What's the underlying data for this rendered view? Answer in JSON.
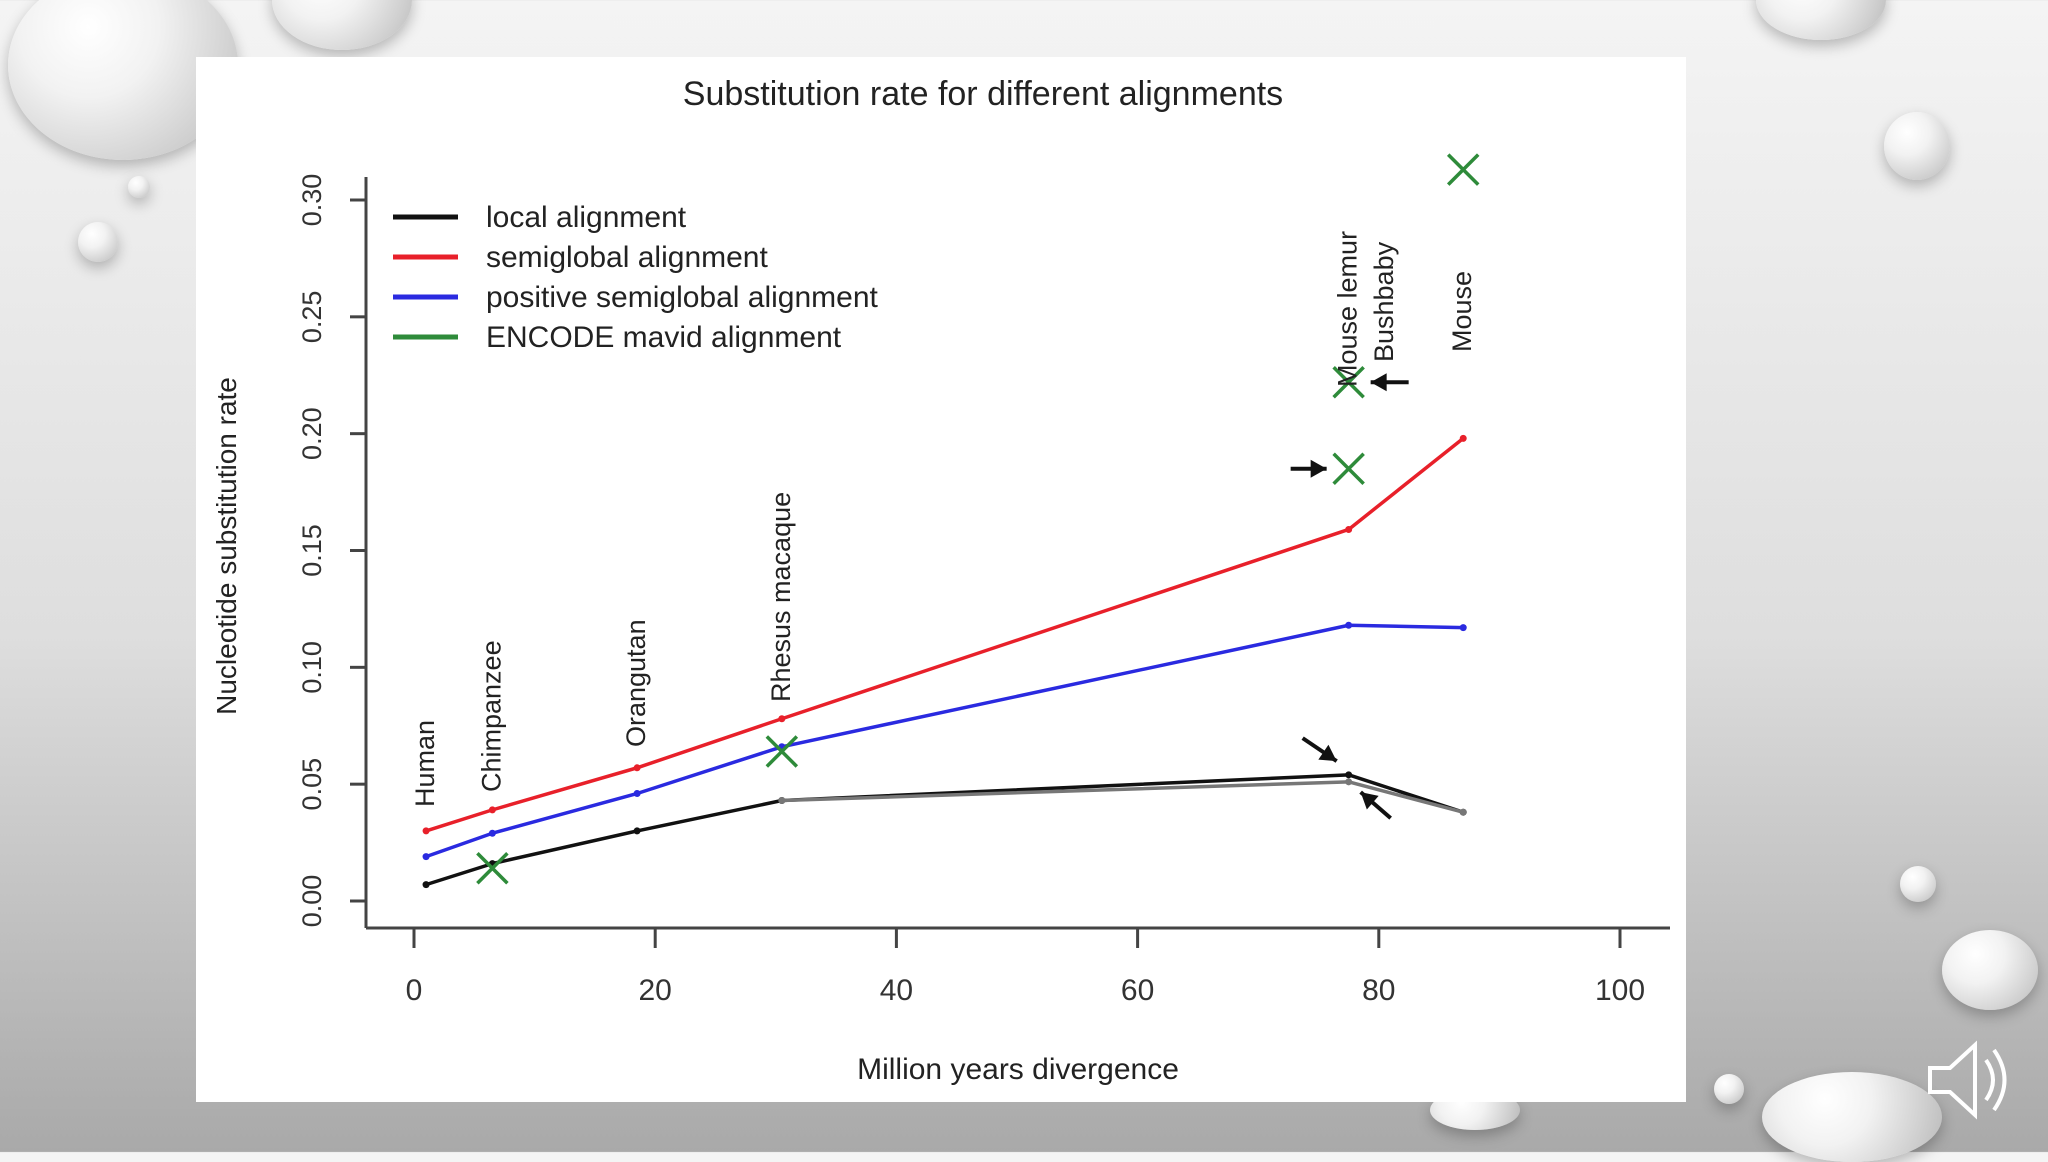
{
  "chart_data": {
    "type": "line",
    "title": "Substitution rate for different alignments",
    "xlabel": "Million years divergence",
    "ylabel": "Nucleotide substitution rate",
    "xlim": [
      0,
      100
    ],
    "ylim": [
      0,
      0.3
    ],
    "xticks": [
      "0",
      "20",
      "40",
      "60",
      "80",
      "100"
    ],
    "yticks": [
      "0.00",
      "0.05",
      "0.10",
      "0.15",
      "0.20",
      "0.25",
      "0.30"
    ],
    "grid": false,
    "legend_position": "top-left",
    "species": [
      {
        "label": "Human",
        "x": 1
      },
      {
        "label": "Chimpanzee",
        "x": 6.5
      },
      {
        "label": "Orangutan",
        "x": 18.5
      },
      {
        "label": "Rhesus macaque",
        "x": 30.5
      },
      {
        "label": "Mouse lemur",
        "x": 77.5
      },
      {
        "label": "Bushbaby",
        "x": 80.5
      },
      {
        "label": "Mouse",
        "x": 87
      }
    ],
    "series": [
      {
        "name": "local alignment",
        "color": "#111111",
        "x": [
          1,
          6.5,
          18.5,
          30.5,
          77.5,
          87
        ],
        "y": [
          0.007,
          0.016,
          0.03,
          0.043,
          0.054,
          0.038
        ]
      },
      {
        "name": "local alignment",
        "color": "#777777",
        "x": [
          30.5,
          77.5,
          87
        ],
        "y": [
          0.043,
          0.051,
          0.038
        ]
      },
      {
        "name": "semiglobal alignment",
        "color": "#e8202a",
        "x": [
          1,
          6.5,
          18.5,
          30.5,
          77.5,
          87
        ],
        "y": [
          0.03,
          0.039,
          0.057,
          0.078,
          0.159,
          0.198
        ]
      },
      {
        "name": "positive semiglobal alignment",
        "color": "#2a2ae0",
        "x": [
          1,
          6.5,
          18.5,
          30.5,
          77.5,
          87
        ],
        "y": [
          0.019,
          0.029,
          0.046,
          0.066,
          0.118,
          0.117
        ]
      },
      {
        "name": "ENCODE mavid alignment",
        "color": "#2e8b3a",
        "markers_only": true,
        "x": [
          6.5,
          30.5,
          77.5,
          77.5,
          87
        ],
        "y": [
          0.014,
          0.064,
          0.185,
          0.222,
          0.313
        ]
      }
    ],
    "annotations": [
      {
        "type": "arrow",
        "x": 77.5,
        "y": 0.185,
        "from": "left"
      },
      {
        "type": "arrow",
        "x": 77.5,
        "y": 0.222,
        "from": "right"
      },
      {
        "type": "arrow",
        "x": 77.5,
        "y": 0.056,
        "from": "upper-left"
      },
      {
        "type": "arrow",
        "x": 77.5,
        "y": 0.05,
        "from": "lower-right"
      }
    ]
  }
}
